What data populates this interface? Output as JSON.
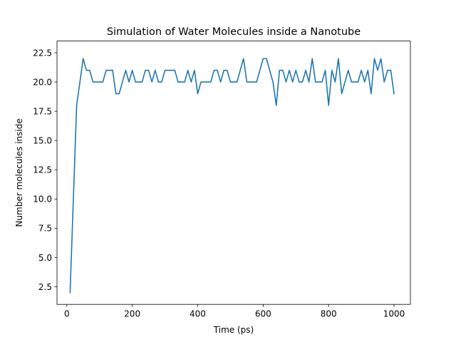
{
  "chart_data": {
    "type": "line",
    "title": "Simulation of Water Molecules inside a Nanotube",
    "xlabel": "Time (ps)",
    "ylabel": "Number molecules inside",
    "xlim": [
      -30,
      1050
    ],
    "ylim": [
      1.0,
      23.5
    ],
    "xticks": [
      0,
      200,
      400,
      600,
      800,
      1000
    ],
    "xtick_labels": [
      "0",
      "200",
      "400",
      "600",
      "800",
      "1000"
    ],
    "yticks": [
      2.5,
      5.0,
      7.5,
      10.0,
      12.5,
      15.0,
      17.5,
      20.0,
      22.5
    ],
    "ytick_labels": [
      "2.5",
      "5.0",
      "7.5",
      "10.0",
      "12.5",
      "15.0",
      "17.5",
      "20.0",
      "22.5"
    ],
    "grid": false,
    "colors": {
      "series": "#1f77b4"
    },
    "series": [
      {
        "x": [
          10,
          20,
          30,
          40,
          50,
          60,
          70,
          80,
          90,
          100,
          110,
          120,
          130,
          140,
          150,
          160,
          170,
          180,
          190,
          200,
          210,
          220,
          230,
          240,
          250,
          260,
          270,
          280,
          290,
          300,
          310,
          320,
          330,
          340,
          350,
          360,
          370,
          380,
          390,
          400,
          410,
          420,
          430,
          440,
          450,
          460,
          470,
          480,
          490,
          500,
          510,
          520,
          530,
          540,
          550,
          560,
          570,
          580,
          590,
          600,
          610,
          620,
          630,
          640,
          650,
          660,
          670,
          680,
          690,
          700,
          710,
          720,
          730,
          740,
          750,
          760,
          770,
          780,
          790,
          800,
          810,
          820,
          830,
          840,
          850,
          860,
          870,
          880,
          890,
          900,
          910,
          920,
          930,
          940,
          950,
          960,
          970,
          980,
          990,
          1000
        ],
        "y": [
          2,
          10,
          18,
          20,
          22,
          21,
          21,
          20,
          20,
          20,
          20,
          21,
          21,
          21,
          19,
          19,
          20,
          21,
          20,
          21,
          20,
          20,
          20,
          21,
          21,
          20,
          21,
          20,
          20,
          21,
          21,
          21,
          21,
          20,
          20,
          20,
          21,
          20,
          21,
          19,
          20,
          20,
          20,
          20,
          21,
          21,
          20,
          21,
          21,
          20,
          20,
          20,
          21,
          22,
          20,
          20,
          20,
          20,
          21,
          22,
          22,
          21,
          20,
          18,
          21,
          21,
          20,
          21,
          20,
          21,
          20,
          20,
          21,
          20,
          22,
          20,
          20,
          20,
          21,
          18,
          21,
          20,
          22,
          19,
          20,
          21,
          20,
          20,
          20,
          21,
          20,
          21,
          19,
          22,
          21,
          22,
          20,
          21,
          21,
          19
        ]
      }
    ]
  }
}
